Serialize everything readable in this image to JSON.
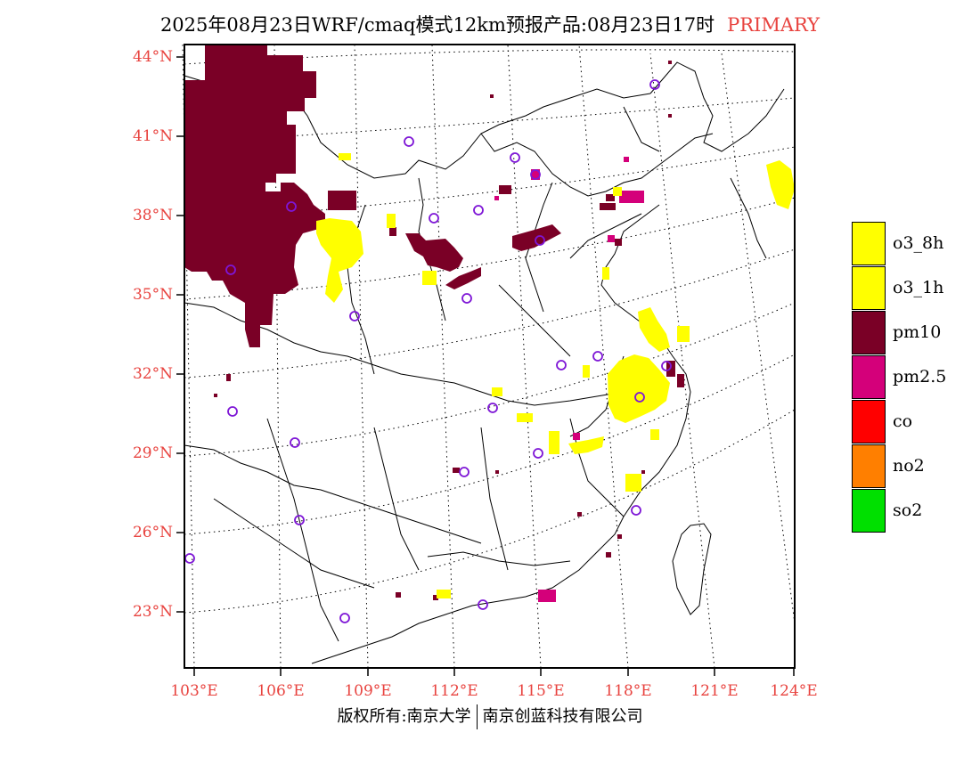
{
  "title": {
    "text": "2025年08月23日WRF/cmaq模式12km预报产品:08月23日17时",
    "tag": "PRIMARY",
    "tag_color": "#e8433f"
  },
  "axes": {
    "y_labels": [
      "44°N",
      "41°N",
      "38°N",
      "35°N",
      "32°N",
      "29°N",
      "26°N",
      "23°N"
    ],
    "x_labels": [
      "103°E",
      "106°E",
      "109°E",
      "112°E",
      "115°E",
      "118°E",
      "121°E",
      "124°E"
    ],
    "label_color": "#e8433f"
  },
  "legend": [
    {
      "label": "o3_8h",
      "color": "#ffff00"
    },
    {
      "label": "o3_1h",
      "color": "#ffff00"
    },
    {
      "label": "pm10",
      "color": "#7a0026"
    },
    {
      "label": "pm2.5",
      "color": "#d4007a"
    },
    {
      "label": "co",
      "color": "#ff0000"
    },
    {
      "label": "no2",
      "color": "#ff7f00"
    },
    {
      "label": "so2",
      "color": "#00e000"
    }
  ],
  "footer": {
    "left": "版权所有:南京大学",
    "right": "南京创蓝科技有限公司"
  }
}
